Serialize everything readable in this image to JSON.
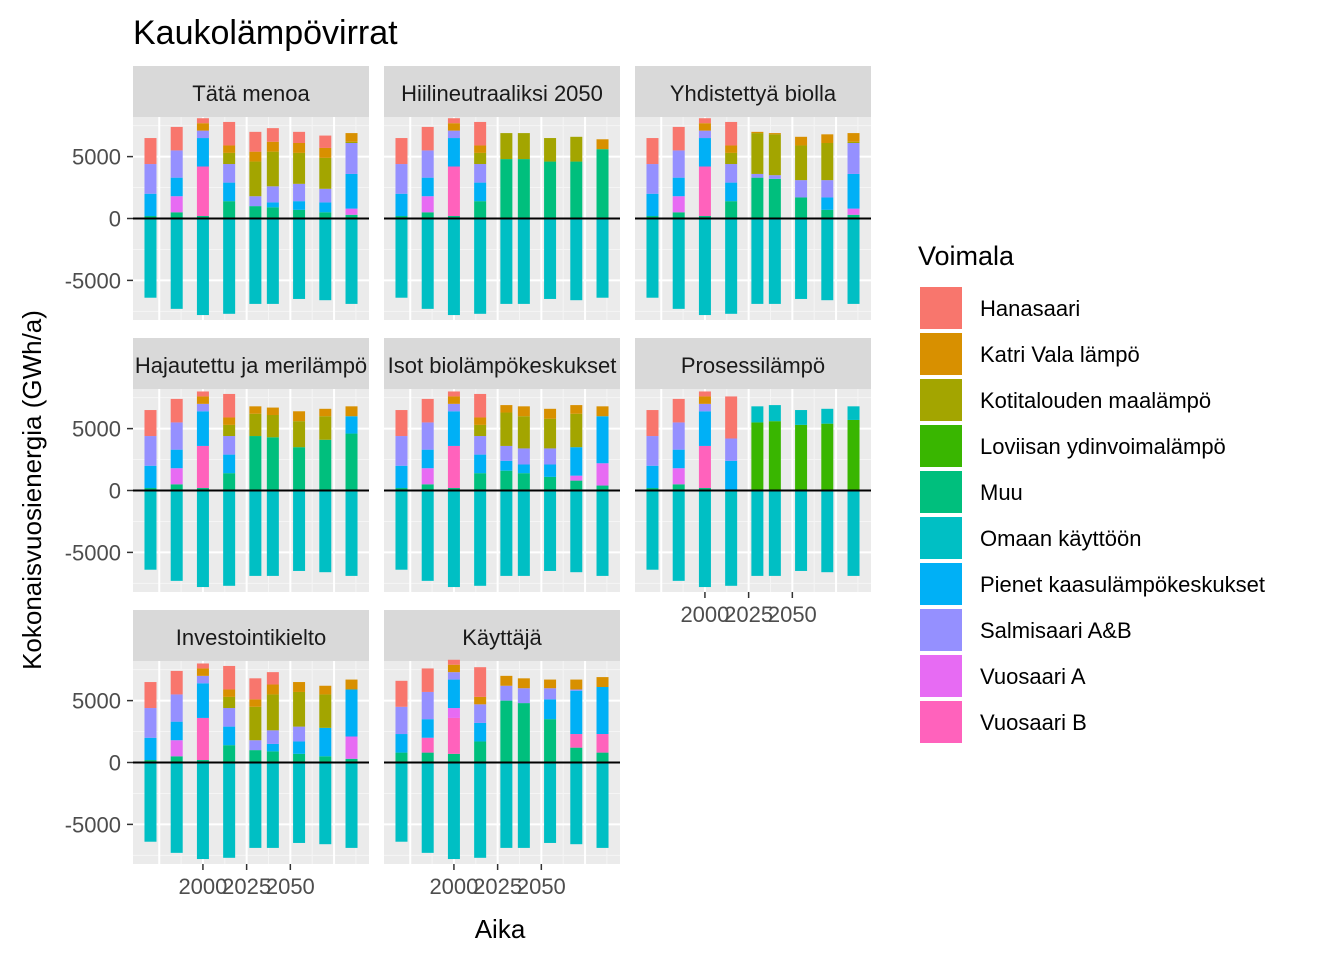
{
  "chart_data": {
    "type": "bar",
    "stacked": true,
    "faceted": true,
    "title": "Kaukolämpövirrat",
    "xlabel": "Aika",
    "ylabel": "Kokonaisvuosienergia (GWh/a)",
    "ylim": [
      -8200,
      8200
    ],
    "xlim": [
      1960,
      2095
    ],
    "x_ticks": [
      2000,
      2025,
      2050
    ],
    "y_ticks": [
      -5000,
      0,
      5000
    ],
    "grid": true,
    "legend_position": "right",
    "legend_title": "Voimala",
    "x": [
      1970,
      1985,
      2000,
      2015,
      2030,
      2040,
      2055,
      2070,
      2085
    ],
    "series_names": [
      "Hanasaari",
      "Katri Vala lämpö",
      "Kotitalouden maalämpö",
      "Loviisan ydinvoimalämpö",
      "Muu",
      "Omaan käyttöön",
      "Pienet kaasulämpökeskukset",
      "Salmisaari A&B",
      "Vuosaari A",
      "Vuosaari B"
    ],
    "colors": {
      "Hanasaari": "#F8766D",
      "Katri Vala lämpö": "#D89000",
      "Kotitalouden maalämpö": "#A3A500",
      "Loviisan ydinvoimalämpö": "#39B600",
      "Muu": "#00BF7D",
      "Omaan käyttöön": "#00BFC4",
      "Pienet kaasulämpökeskukset": "#00B0F6",
      "Salmisaari A&B": "#9590FF",
      "Vuosaari A": "#E76BF3",
      "Vuosaari B": "#FF62BC"
    },
    "panels": [
      {
        "name": "Tätä menoa",
        "strip_label": "Tätä menoa",
        "values": {
          "Omaan käyttöön": [
            -6400,
            -7300,
            -7800,
            -7700,
            -6900,
            -6900,
            -6500,
            -6600,
            -6900
          ],
          "Muu": [
            200,
            500,
            200,
            1400,
            1000,
            900,
            700,
            500,
            300
          ],
          "Vuosaari B": [
            0,
            0,
            4000,
            0,
            0,
            0,
            0,
            0,
            0
          ],
          "Vuosaari A": [
            0,
            1300,
            0,
            0,
            0,
            0,
            0,
            0,
            500
          ],
          "Pienet kaasulämpökeskukset": [
            1800,
            1500,
            2300,
            1500,
            0,
            400,
            700,
            800,
            2800
          ],
          "Salmisaari A&B": [
            2400,
            2200,
            600,
            1500,
            800,
            1300,
            1400,
            1100,
            2500
          ],
          "Kotitalouden maalämpö": [
            0,
            0,
            0,
            900,
            2800,
            2800,
            2500,
            2500,
            100
          ],
          "Katri Vala lämpö": [
            0,
            0,
            600,
            600,
            800,
            800,
            800,
            800,
            700
          ],
          "Hanasaari": [
            2100,
            1900,
            400,
            1900,
            1600,
            1100,
            900,
            1000,
            0
          ]
        }
      },
      {
        "name": "Hiilineutraaliksi 2050",
        "strip_label": "Hiilineutraaliksi 2050",
        "values": {
          "Omaan käyttöön": [
            -6400,
            -7300,
            -7800,
            -7700,
            -6900,
            -6900,
            -6500,
            -6600,
            -6400
          ],
          "Muu": [
            200,
            500,
            200,
            1400,
            4800,
            4800,
            4600,
            4600,
            5600
          ],
          "Vuosaari B": [
            0,
            0,
            4000,
            0,
            0,
            0,
            0,
            0,
            0
          ],
          "Vuosaari A": [
            0,
            1300,
            0,
            0,
            0,
            0,
            0,
            0,
            0
          ],
          "Pienet kaasulämpökeskukset": [
            1800,
            1500,
            2300,
            1500,
            0,
            0,
            0,
            0,
            0
          ],
          "Salmisaari A&B": [
            2400,
            2200,
            600,
            1500,
            0,
            0,
            0,
            0,
            0
          ],
          "Kotitalouden maalämpö": [
            0,
            0,
            0,
            900,
            2100,
            2100,
            1900,
            2000,
            0
          ],
          "Katri Vala lämpö": [
            0,
            0,
            600,
            600,
            0,
            0,
            0,
            0,
            800
          ],
          "Hanasaari": [
            2100,
            1900,
            400,
            1900,
            0,
            0,
            0,
            0,
            0
          ]
        }
      },
      {
        "name": "Yhdistettyä biolla",
        "strip_label": "Yhdistettyä biolla",
        "values": {
          "Omaan käyttöön": [
            -6400,
            -7300,
            -7800,
            -7700,
            -6900,
            -6900,
            -6500,
            -6600,
            -6900
          ],
          "Muu": [
            200,
            500,
            200,
            1400,
            3300,
            3200,
            1700,
            700,
            300
          ],
          "Vuosaari B": [
            0,
            0,
            4000,
            0,
            0,
            0,
            0,
            0,
            0
          ],
          "Vuosaari A": [
            0,
            1300,
            0,
            0,
            0,
            0,
            0,
            0,
            500
          ],
          "Pienet kaasulämpökeskukset": [
            1800,
            1500,
            2300,
            1500,
            0,
            0,
            0,
            1000,
            2800
          ],
          "Salmisaari A&B": [
            2400,
            2200,
            600,
            1500,
            300,
            300,
            1400,
            1400,
            2500
          ],
          "Kotitalouden maalämpö": [
            0,
            0,
            0,
            900,
            3300,
            3300,
            2800,
            3000,
            100
          ],
          "Katri Vala lämpö": [
            0,
            0,
            600,
            600,
            100,
            100,
            700,
            700,
            700
          ],
          "Hanasaari": [
            2100,
            1900,
            400,
            1900,
            0,
            0,
            0,
            0,
            0
          ]
        }
      },
      {
        "name": "Hajautettu ja merilämpö",
        "strip_label": "Hajautettu ja merilämpö",
        "values": {
          "Omaan käyttöön": [
            -6400,
            -7300,
            -7800,
            -7700,
            -6900,
            -6900,
            -6500,
            -6600,
            -6900
          ],
          "Muu": [
            200,
            500,
            200,
            1400,
            4400,
            4300,
            3500,
            4100,
            4600
          ],
          "Vuosaari B": [
            0,
            0,
            3400,
            0,
            0,
            0,
            0,
            0,
            0
          ],
          "Vuosaari A": [
            0,
            1300,
            0,
            0,
            0,
            0,
            0,
            0,
            0
          ],
          "Pienet kaasulämpökeskukset": [
            1800,
            1500,
            2800,
            1500,
            0,
            0,
            0,
            0,
            1400
          ],
          "Salmisaari A&B": [
            2400,
            2200,
            600,
            1500,
            0,
            0,
            0,
            0,
            0
          ],
          "Kotitalouden maalämpö": [
            0,
            0,
            0,
            900,
            1800,
            1800,
            2100,
            1900,
            0
          ],
          "Katri Vala lämpö": [
            0,
            0,
            600,
            600,
            600,
            600,
            800,
            600,
            800
          ],
          "Hanasaari": [
            2100,
            1900,
            400,
            1900,
            0,
            0,
            0,
            0,
            0
          ]
        }
      },
      {
        "name": "Isot biolämpökeskukset",
        "strip_label": "Isot biolämpökeskukset",
        "values": {
          "Omaan käyttöön": [
            -6400,
            -7300,
            -7800,
            -7700,
            -6900,
            -6900,
            -6500,
            -6600,
            -6900
          ],
          "Muu": [
            200,
            500,
            200,
            1400,
            1600,
            1400,
            1100,
            800,
            400
          ],
          "Vuosaari B": [
            0,
            0,
            3400,
            0,
            0,
            0,
            0,
            0,
            0
          ],
          "Vuosaari A": [
            0,
            1300,
            0,
            0,
            0,
            0,
            0,
            400,
            1800
          ],
          "Pienet kaasulämpökeskukset": [
            1800,
            1500,
            2800,
            1500,
            800,
            700,
            1000,
            2300,
            3800
          ],
          "Salmisaari A&B": [
            2400,
            2200,
            600,
            1500,
            1200,
            1300,
            1300,
            0,
            0
          ],
          "Kotitalouden maalämpö": [
            0,
            0,
            0,
            900,
            2700,
            2600,
            2400,
            2700,
            0
          ],
          "Katri Vala lämpö": [
            0,
            0,
            600,
            600,
            600,
            800,
            800,
            700,
            800
          ],
          "Hanasaari": [
            2100,
            1900,
            400,
            1900,
            0,
            0,
            0,
            0,
            0
          ]
        }
      },
      {
        "name": "Prosessilämpö",
        "strip_label": "Prosessilämpö",
        "values": {
          "Omaan käyttöön": [
            -6400,
            -7300,
            -7800,
            -7700,
            -6900,
            -6900,
            -6500,
            -6600,
            -6900
          ],
          "Muu": [
            200,
            500,
            200,
            0,
            0,
            0,
            0,
            0,
            0
          ],
          "Loviisan ydinvoimalämpö": [
            0,
            0,
            0,
            0,
            5500,
            5600,
            5300,
            5400,
            5700
          ],
          "Omaan käyttöön (plus)": [
            0,
            0,
            0,
            0,
            1300,
            1300,
            1200,
            1200,
            1100
          ],
          "Vuosaari B": [
            0,
            0,
            3400,
            0,
            0,
            0,
            0,
            0,
            0
          ],
          "Vuosaari A": [
            0,
            1300,
            0,
            0,
            0,
            0,
            0,
            0,
            0
          ],
          "Pienet kaasulämpökeskukset": [
            1800,
            1500,
            2800,
            2400,
            0,
            0,
            0,
            0,
            0
          ],
          "Salmisaari A&B": [
            2400,
            2200,
            600,
            1800,
            0,
            0,
            0,
            0,
            0
          ],
          "Katri Vala lämpö": [
            0,
            0,
            600,
            0,
            0,
            0,
            0,
            0,
            0
          ],
          "Hanasaari": [
            2100,
            1900,
            400,
            3400,
            0,
            0,
            0,
            0,
            0
          ]
        }
      },
      {
        "name": "Investointikielto",
        "strip_label": "Investointikielto",
        "values": {
          "Omaan käyttöön": [
            -6400,
            -7300,
            -7800,
            -7700,
            -6900,
            -6900,
            -6500,
            -6600,
            -6900
          ],
          "Muu": [
            200,
            500,
            200,
            1400,
            1000,
            900,
            700,
            500,
            300
          ],
          "Vuosaari B": [
            0,
            0,
            3400,
            0,
            0,
            0,
            0,
            0,
            0
          ],
          "Vuosaari A": [
            0,
            1300,
            0,
            0,
            0,
            0,
            0,
            0,
            1800
          ],
          "Pienet kaasulämpökeskukset": [
            1800,
            1500,
            2800,
            1500,
            0,
            600,
            1000,
            2300,
            3800
          ],
          "Salmisaari A&B": [
            2400,
            2200,
            600,
            1500,
            800,
            1100,
            1200,
            0,
            0
          ],
          "Kotitalouden maalämpö": [
            0,
            0,
            0,
            900,
            2700,
            2900,
            2800,
            2700,
            0
          ],
          "Katri Vala lämpö": [
            0,
            0,
            600,
            600,
            600,
            800,
            800,
            700,
            800
          ],
          "Hanasaari": [
            2100,
            1900,
            400,
            1900,
            1700,
            1000,
            0,
            0,
            0
          ]
        }
      },
      {
        "name": "Käyttäjä",
        "strip_label": "Käyttäjä",
        "values": {
          "Omaan käyttöön": [
            -6400,
            -7300,
            -7800,
            -7700,
            -6900,
            -6900,
            -6500,
            -6600,
            -6900
          ],
          "Muu": [
            800,
            800,
            700,
            1700,
            5000,
            4800,
            3500,
            1200,
            800
          ],
          "Vuosaari B": [
            0,
            1200,
            2900,
            0,
            0,
            0,
            0,
            1100,
            1500
          ],
          "Vuosaari A": [
            0,
            0,
            800,
            0,
            0,
            0,
            0,
            0,
            0
          ],
          "Pienet kaasulämpökeskukset": [
            1500,
            1500,
            2300,
            1500,
            0,
            0,
            1600,
            3500,
            3800
          ],
          "Salmisaari A&B": [
            2200,
            2200,
            600,
            1500,
            1200,
            1200,
            900,
            100,
            0
          ],
          "Kotitalouden maalämpö": [
            0,
            0,
            0,
            0,
            0,
            0,
            0,
            0,
            0
          ],
          "Katri Vala lämpö": [
            0,
            0,
            600,
            600,
            800,
            800,
            700,
            800,
            800
          ],
          "Hanasaari": [
            2100,
            1900,
            400,
            2400,
            0,
            0,
            0,
            0,
            0
          ]
        }
      }
    ]
  }
}
